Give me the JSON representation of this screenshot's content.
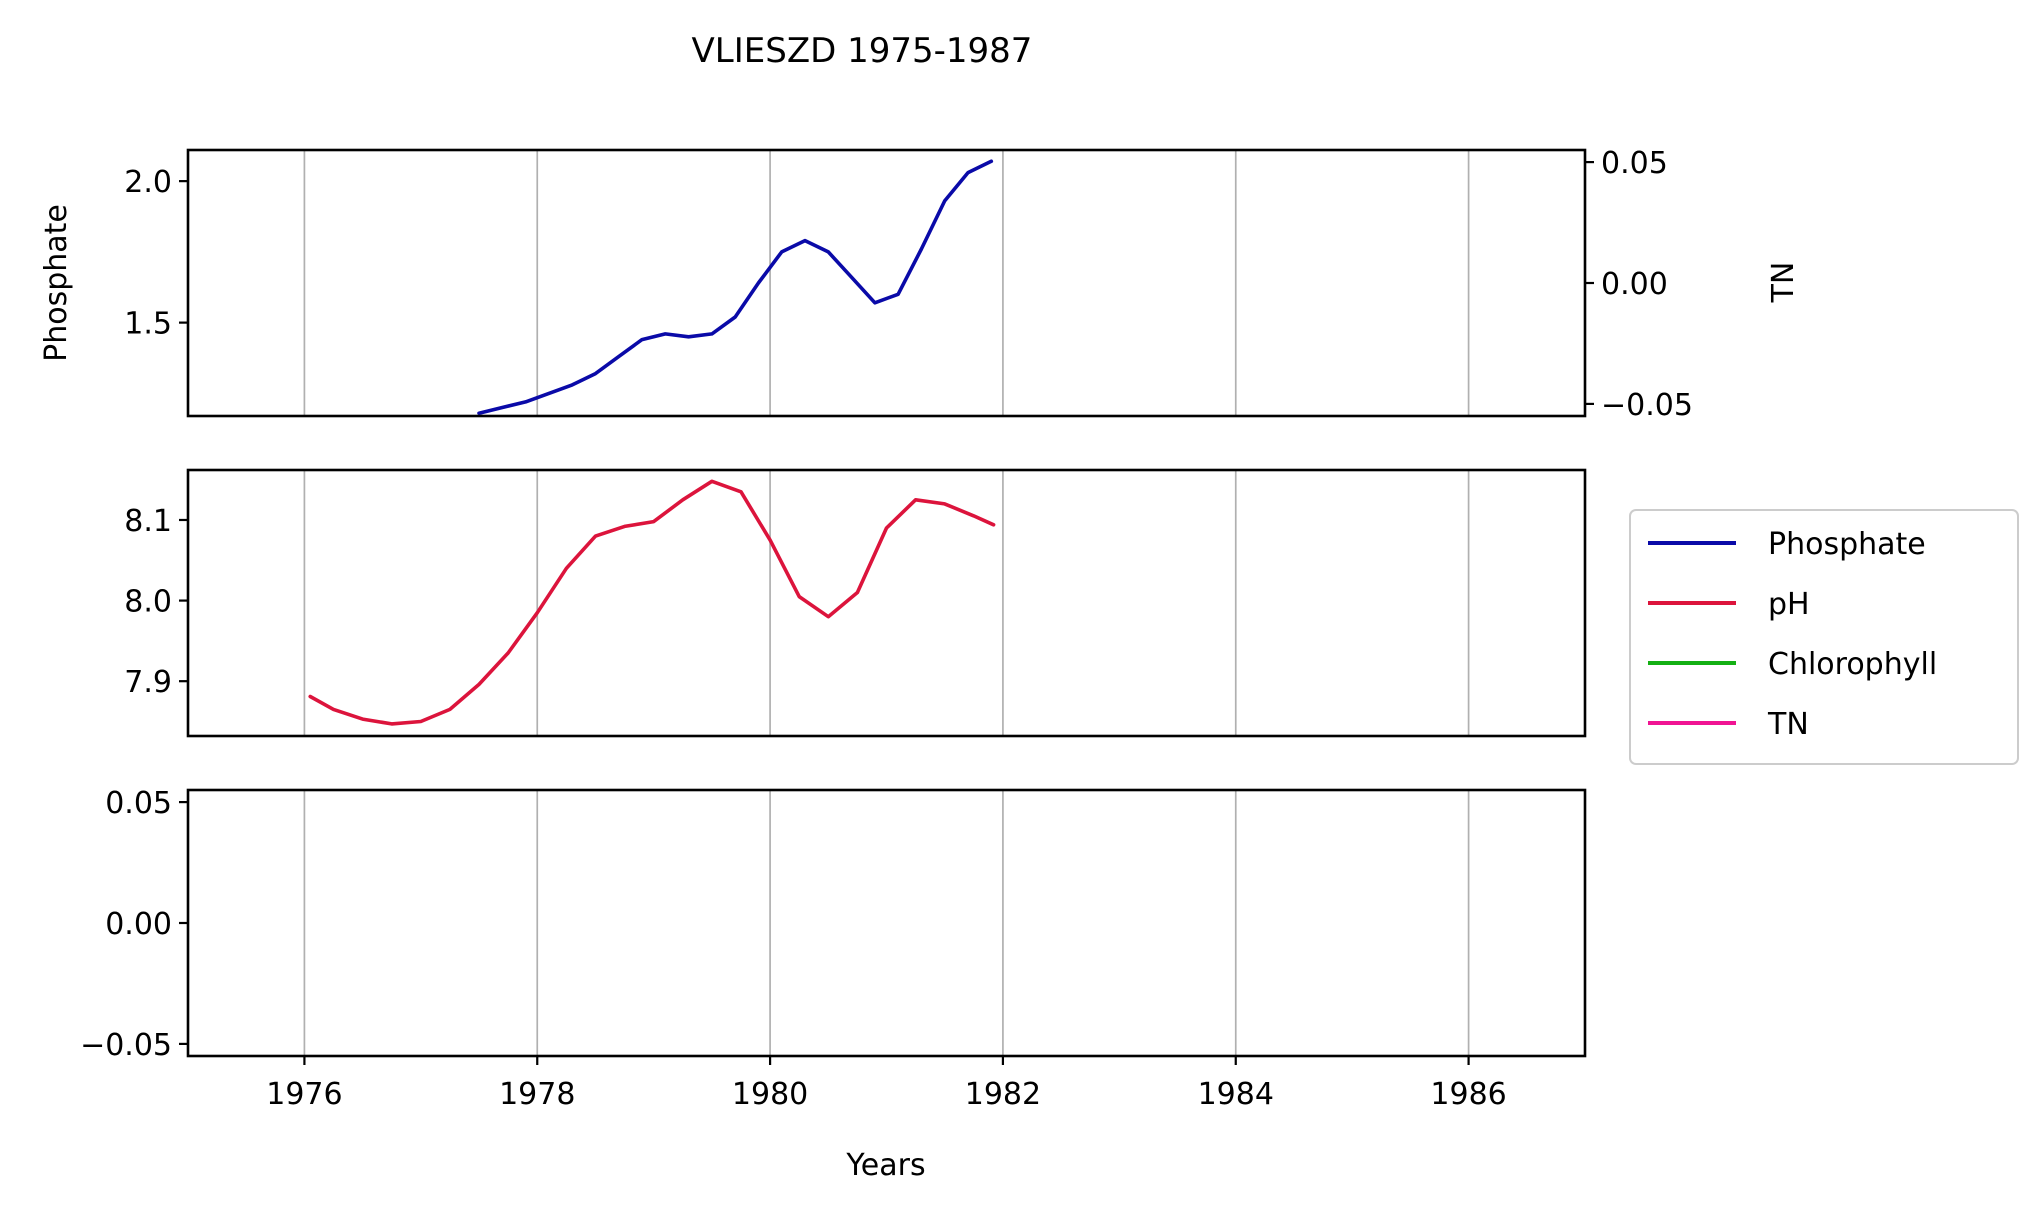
{
  "chart_data": {
    "type": "line",
    "title": "VLIESZD 1975-1987",
    "xlabel": "Years",
    "xlim": [
      1975,
      1987
    ],
    "x_ticks": [
      "1976",
      "1978",
      "1980",
      "1982",
      "1984",
      "1986"
    ],
    "grid": "x",
    "legend": {
      "placement": "right",
      "entries": [
        {
          "name": "Phosphate",
          "color": "#0a0aa8"
        },
        {
          "name": "pH",
          "color": "#dc143c"
        },
        {
          "name": "Chlorophyll",
          "color": "#14b014"
        },
        {
          "name": "TN",
          "color": "#f01493"
        }
      ]
    },
    "panels": [
      {
        "ylabel": "Phosphate",
        "ylim": [
          1.17,
          2.11
        ],
        "y_ticks": [
          {
            "value": 1.5,
            "label": "1.5"
          },
          {
            "value": 2.0,
            "label": "2.0"
          }
        ],
        "secondary_axis": {
          "ylabel": "TN",
          "ylim": [
            -0.055,
            0.055
          ],
          "y_ticks": [
            {
              "value": -0.05,
              "label": "−0.05"
            },
            {
              "value": 0.0,
              "label": "0.00"
            },
            {
              "value": 0.05,
              "label": "0.05"
            }
          ]
        },
        "series": [
          {
            "name": "Phosphate",
            "color": "#0a0aa8",
            "x": [
              1977.5,
              1977.7,
              1977.9,
              1978.1,
              1978.3,
              1978.5,
              1978.7,
              1978.9,
              1979.1,
              1979.3,
              1979.5,
              1979.7,
              1979.9,
              1980.1,
              1980.3,
              1980.5,
              1980.7,
              1980.9,
              1981.1,
              1981.3,
              1981.5,
              1981.7,
              1981.9
            ],
            "y": [
              1.18,
              1.2,
              1.22,
              1.25,
              1.28,
              1.32,
              1.38,
              1.44,
              1.46,
              1.45,
              1.46,
              1.52,
              1.64,
              1.75,
              1.79,
              1.75,
              1.66,
              1.57,
              1.6,
              1.76,
              1.93,
              2.03,
              2.07
            ]
          }
        ]
      },
      {
        "ylabel": "",
        "ylim": [
          7.832,
          8.162
        ],
        "y_ticks": [
          {
            "value": 7.9,
            "label": "7.9"
          },
          {
            "value": 8.0,
            "label": "8.0"
          },
          {
            "value": 8.1,
            "label": "8.1"
          }
        ],
        "series": [
          {
            "name": "pH",
            "color": "#dc143c",
            "x": [
              1976.05,
              1976.25,
              1976.5,
              1976.75,
              1977.0,
              1977.25,
              1977.5,
              1977.75,
              1978.0,
              1978.25,
              1978.5,
              1978.75,
              1979.0,
              1979.25,
              1979.5,
              1979.75,
              1980.0,
              1980.25,
              1980.5,
              1980.75,
              1981.0,
              1981.25,
              1981.5,
              1981.75,
              1981.92
            ],
            "y": [
              7.881,
              7.865,
              7.853,
              7.847,
              7.85,
              7.865,
              7.896,
              7.935,
              7.985,
              8.04,
              8.08,
              8.092,
              8.098,
              8.125,
              8.148,
              8.135,
              8.075,
              8.005,
              7.98,
              8.01,
              8.09,
              8.125,
              8.12,
              8.105,
              8.094
            ]
          }
        ]
      },
      {
        "ylabel": "",
        "ylim": [
          -0.055,
          0.055
        ],
        "y_ticks": [
          {
            "value": -0.05,
            "label": "−0.05"
          },
          {
            "value": 0.0,
            "label": "0.00"
          },
          {
            "value": 0.05,
            "label": "0.05"
          }
        ],
        "series": []
      }
    ]
  }
}
